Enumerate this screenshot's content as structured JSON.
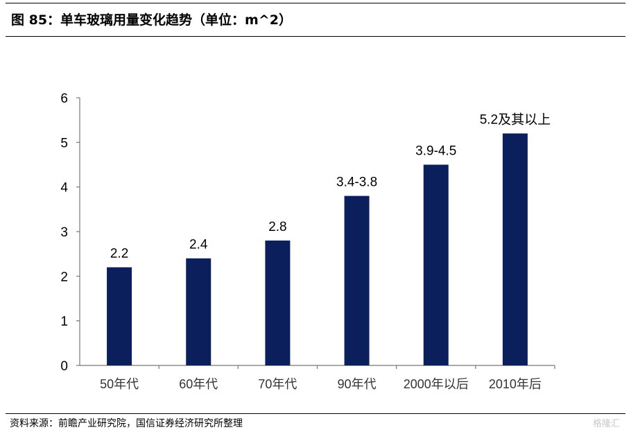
{
  "figure": {
    "title": "图  85：单车玻璃用量变化趋势（单位：m^2）",
    "source": "资料来源：前瞻产业研究院，国信证券经济研究所整理",
    "watermark": "格隆汇"
  },
  "chart_data": {
    "type": "bar",
    "categories": [
      "50年代",
      "60年代",
      "70年代",
      "90年代",
      "2000年以后",
      "2010年后"
    ],
    "values": [
      2.2,
      2.4,
      2.8,
      3.8,
      4.5,
      5.2
    ],
    "data_labels": [
      "2.2",
      "2.4",
      "2.8",
      "3.4-3.8",
      "3.9-4.5",
      "5.2及其以上"
    ],
    "yticks": [
      "0",
      "1",
      "2",
      "3",
      "4",
      "5",
      "6"
    ],
    "ylim": [
      0,
      6
    ],
    "bar_color": "#0b1f5c",
    "axis_color": "#777777",
    "grid": false,
    "legend": "none"
  }
}
